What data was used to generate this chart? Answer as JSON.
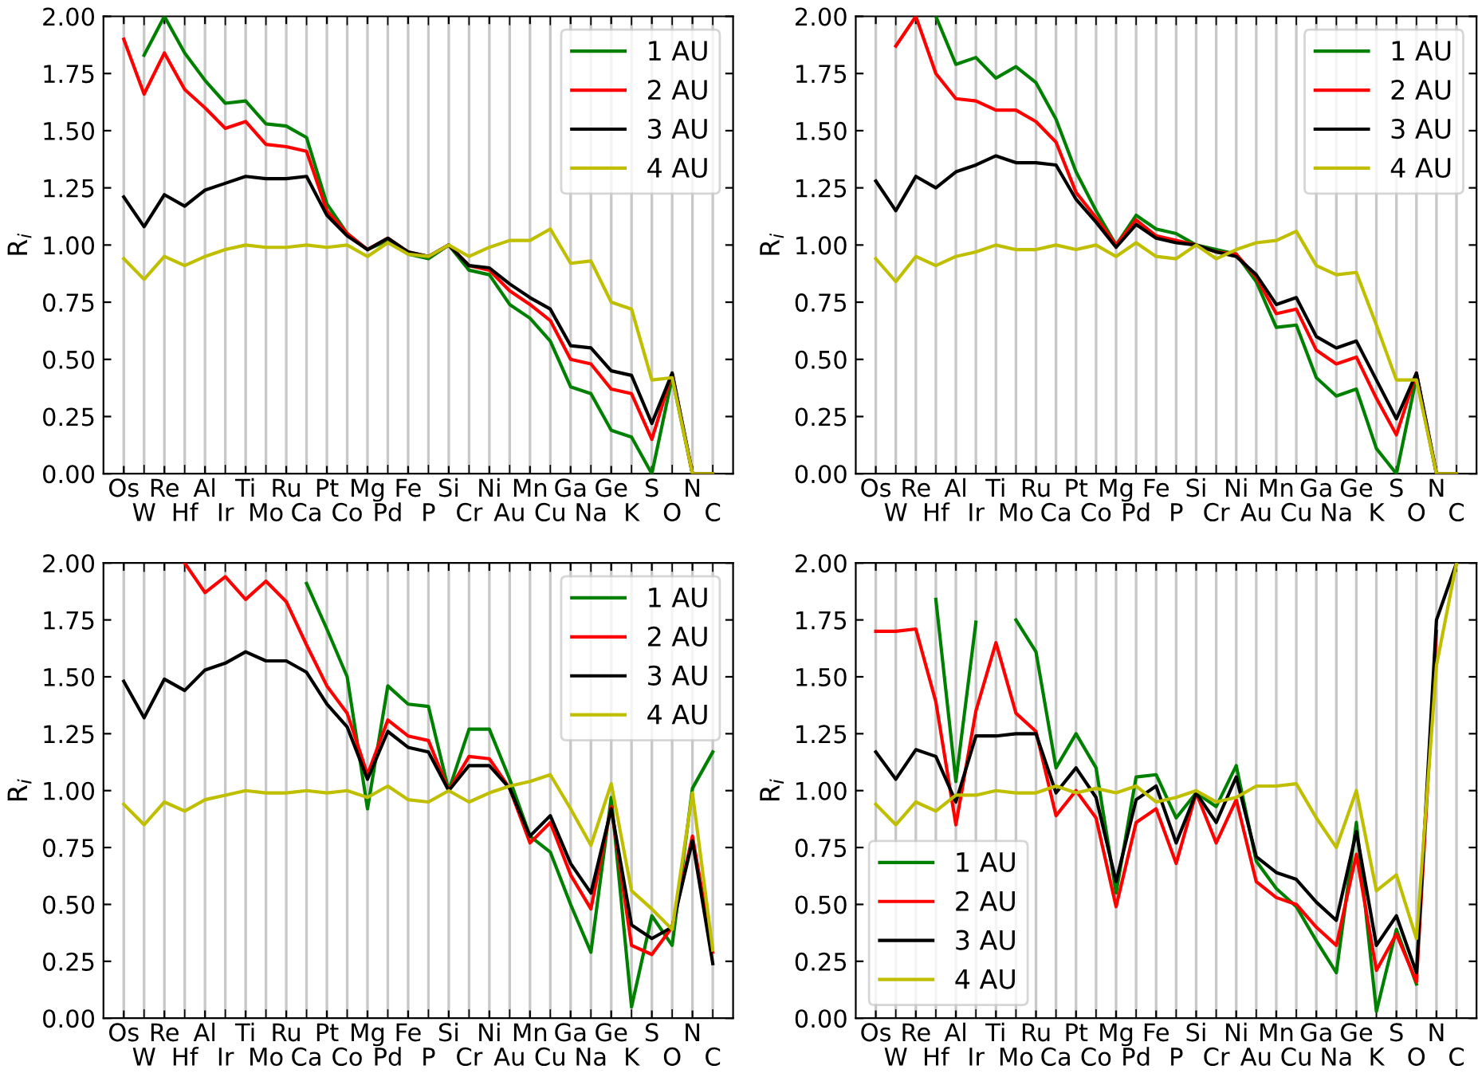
{
  "chart_data": [
    {
      "type": "line",
      "ylabel": "R$_{i}$",
      "grid": "x",
      "legend": "top right",
      "categories": [
        "Os",
        "W",
        "Re",
        "Hf",
        "Al",
        "Ir",
        "Ti",
        "Mo",
        "Ru",
        "Ca",
        "Pt",
        "Co",
        "Mg",
        "Pd",
        "Fe",
        "P",
        "Si",
        "Cr",
        "Ni",
        "Au",
        "Mn",
        "Cu",
        "Ga",
        "Na",
        "Ge",
        "K",
        "S",
        "O",
        "N",
        "C"
      ],
      "ylim": [
        0,
        2
      ],
      "yticks": [
        {
          "value": 0,
          "label": "0.00"
        },
        {
          "value": 0.25,
          "label": "0.25"
        },
        {
          "value": 0.5,
          "label": "0.50"
        },
        {
          "value": 0.75,
          "label": "0.75"
        },
        {
          "value": 1,
          "label": "1.00"
        },
        {
          "value": 1.25,
          "label": "1.25"
        },
        {
          "value": 1.5,
          "label": "1.50"
        },
        {
          "value": 1.75,
          "label": "1.75"
        },
        {
          "value": 2,
          "label": "2.00"
        }
      ],
      "series": [
        {
          "name": "1 AU",
          "color": "#008000",
          "values": [
            null,
            1.83,
            2.0,
            1.84,
            1.72,
            1.62,
            1.63,
            1.53,
            1.52,
            1.47,
            1.18,
            1.05,
            0.98,
            1.02,
            0.96,
            0.94,
            1.0,
            0.89,
            0.87,
            0.74,
            0.68,
            0.58,
            0.38,
            0.35,
            0.19,
            0.16,
            0.0,
            0.42,
            0.0,
            0.0
          ]
        },
        {
          "name": "2 AU",
          "color": "#ff0000",
          "values": [
            1.9,
            1.66,
            1.84,
            1.68,
            1.6,
            1.51,
            1.54,
            1.44,
            1.43,
            1.41,
            1.15,
            1.05,
            0.98,
            1.03,
            0.97,
            0.95,
            1.0,
            0.91,
            0.89,
            0.8,
            0.74,
            0.67,
            0.5,
            0.48,
            0.37,
            0.35,
            0.15,
            0.44,
            0.0,
            0.0
          ]
        },
        {
          "name": "3 AU",
          "color": "#000000",
          "values": [
            1.21,
            1.08,
            1.22,
            1.17,
            1.24,
            1.27,
            1.3,
            1.29,
            1.29,
            1.3,
            1.13,
            1.04,
            0.98,
            1.03,
            0.97,
            0.95,
            1.0,
            0.91,
            0.9,
            0.83,
            0.77,
            0.72,
            0.56,
            0.55,
            0.45,
            0.43,
            0.22,
            0.44,
            0.0,
            0.0
          ]
        },
        {
          "name": "4 AU",
          "color": "#bfbf00",
          "values": [
            0.94,
            0.85,
            0.95,
            0.91,
            0.95,
            0.98,
            1.0,
            0.99,
            0.99,
            1.0,
            0.99,
            1.0,
            0.95,
            1.01,
            0.96,
            0.95,
            1.0,
            0.95,
            0.99,
            1.02,
            1.02,
            1.07,
            0.92,
            0.93,
            0.75,
            0.72,
            0.41,
            0.42,
            0.0,
            0.0
          ]
        }
      ]
    },
    {
      "type": "line",
      "ylabel": "R$_{i}$",
      "grid": "x",
      "legend": "top right",
      "categories": [
        "Os",
        "W",
        "Re",
        "Hf",
        "Al",
        "Ir",
        "Ti",
        "Mo",
        "Ru",
        "Ca",
        "Pt",
        "Co",
        "Mg",
        "Pd",
        "Fe",
        "P",
        "Si",
        "Cr",
        "Ni",
        "Au",
        "Mn",
        "Cu",
        "Ga",
        "Na",
        "Ge",
        "K",
        "S",
        "O",
        "N",
        "C"
      ],
      "ylim": [
        0,
        2
      ],
      "yticks": [
        {
          "value": 0,
          "label": "0.00"
        },
        {
          "value": 0.25,
          "label": "0.25"
        },
        {
          "value": 0.5,
          "label": "0.50"
        },
        {
          "value": 0.75,
          "label": "0.75"
        },
        {
          "value": 1,
          "label": "1.00"
        },
        {
          "value": 1.25,
          "label": "1.25"
        },
        {
          "value": 1.5,
          "label": "1.50"
        },
        {
          "value": 1.75,
          "label": "1.75"
        },
        {
          "value": 2,
          "label": "2.00"
        }
      ],
      "series": [
        {
          "name": "1 AU",
          "color": "#008000",
          "values": [
            null,
            null,
            null,
            2.0,
            1.79,
            1.82,
            1.73,
            1.78,
            1.71,
            1.55,
            1.32,
            1.15,
            1.0,
            1.13,
            1.07,
            1.05,
            1.0,
            0.98,
            0.96,
            0.84,
            0.64,
            0.65,
            0.42,
            0.34,
            0.37,
            0.11,
            0.0,
            0.42,
            0.0,
            0.0
          ]
        },
        {
          "name": "2 AU",
          "color": "#ff0000",
          "values": [
            null,
            1.87,
            2.0,
            1.75,
            1.64,
            1.63,
            1.59,
            1.59,
            1.54,
            1.45,
            1.23,
            1.12,
            1.0,
            1.11,
            1.04,
            1.02,
            1.0,
            0.97,
            0.96,
            0.86,
            0.7,
            0.72,
            0.54,
            0.48,
            0.51,
            0.33,
            0.17,
            0.44,
            0.0,
            0.0
          ]
        },
        {
          "name": "3 AU",
          "color": "#000000",
          "values": [
            1.28,
            1.15,
            1.3,
            1.25,
            1.32,
            1.35,
            1.39,
            1.36,
            1.36,
            1.35,
            1.2,
            1.1,
            0.99,
            1.09,
            1.03,
            1.01,
            1.0,
            0.97,
            0.95,
            0.87,
            0.74,
            0.77,
            0.6,
            0.55,
            0.58,
            0.41,
            0.24,
            0.44,
            0.0,
            0.0
          ]
        },
        {
          "name": "4 AU",
          "color": "#bfbf00",
          "values": [
            0.94,
            0.84,
            0.95,
            0.91,
            0.95,
            0.97,
            1.0,
            0.98,
            0.98,
            1.0,
            0.98,
            1.0,
            0.95,
            1.01,
            0.95,
            0.94,
            1.0,
            0.94,
            0.98,
            1.01,
            1.02,
            1.06,
            0.91,
            0.87,
            0.88,
            0.65,
            0.41,
            0.41,
            0.0,
            0.0
          ]
        }
      ]
    },
    {
      "type": "line",
      "ylabel": "R$_{i}$",
      "grid": "x",
      "legend": "top right",
      "categories": [
        "Os",
        "W",
        "Re",
        "Hf",
        "Al",
        "Ir",
        "Ti",
        "Mo",
        "Ru",
        "Ca",
        "Pt",
        "Co",
        "Mg",
        "Pd",
        "Fe",
        "P",
        "Si",
        "Cr",
        "Ni",
        "Au",
        "Mn",
        "Cu",
        "Ga",
        "Na",
        "Ge",
        "K",
        "S",
        "O",
        "N",
        "C"
      ],
      "ylim": [
        0,
        2
      ],
      "yticks": [
        {
          "value": 0,
          "label": "0.00"
        },
        {
          "value": 0.25,
          "label": "0.25"
        },
        {
          "value": 0.5,
          "label": "0.50"
        },
        {
          "value": 0.75,
          "label": "0.75"
        },
        {
          "value": 1,
          "label": "1.00"
        },
        {
          "value": 1.25,
          "label": "1.25"
        },
        {
          "value": 1.5,
          "label": "1.50"
        },
        {
          "value": 1.75,
          "label": "1.75"
        },
        {
          "value": 2,
          "label": "2.00"
        }
      ],
      "series": [
        {
          "name": "1 AU",
          "color": "#008000",
          "values": [
            null,
            null,
            null,
            null,
            null,
            null,
            null,
            null,
            null,
            1.91,
            1.71,
            1.5,
            0.92,
            1.46,
            1.38,
            1.37,
            1.0,
            1.27,
            1.27,
            1.05,
            0.8,
            0.73,
            0.5,
            0.29,
            0.97,
            0.05,
            0.45,
            0.32,
            1.01,
            1.17
          ]
        },
        {
          "name": "2 AU",
          "color": "#ff0000",
          "values": [
            null,
            null,
            null,
            2.0,
            1.87,
            1.94,
            1.84,
            1.92,
            1.83,
            1.64,
            1.46,
            1.34,
            1.07,
            1.31,
            1.24,
            1.22,
            1.0,
            1.15,
            1.14,
            1.01,
            0.77,
            0.86,
            0.63,
            0.48,
            0.93,
            0.32,
            0.28,
            0.4,
            0.8,
            0.29
          ]
        },
        {
          "name": "3 AU",
          "color": "#000000",
          "values": [
            1.48,
            1.32,
            1.49,
            1.44,
            1.53,
            1.56,
            1.61,
            1.57,
            1.57,
            1.52,
            1.38,
            1.28,
            1.05,
            1.26,
            1.19,
            1.17,
            1.0,
            1.11,
            1.11,
            1.01,
            0.8,
            0.89,
            0.68,
            0.55,
            0.92,
            0.41,
            0.35,
            0.4,
            0.78,
            0.24
          ]
        },
        {
          "name": "4 AU",
          "color": "#bfbf00",
          "values": [
            0.94,
            0.85,
            0.95,
            0.91,
            0.96,
            0.98,
            1.0,
            0.99,
            0.99,
            1.0,
            0.99,
            1.0,
            0.97,
            1.02,
            0.96,
            0.95,
            1.0,
            0.95,
            0.99,
            1.02,
            1.04,
            1.07,
            0.92,
            0.76,
            1.03,
            0.56,
            0.48,
            0.39,
            0.99,
            0.3
          ]
        }
      ]
    },
    {
      "type": "line",
      "ylabel": "R$_{i}$",
      "grid": "x",
      "legend": "bottom left",
      "categories": [
        "Os",
        "W",
        "Re",
        "Hf",
        "Al",
        "Ir",
        "Ti",
        "Mo",
        "Ru",
        "Ca",
        "Pt",
        "Co",
        "Mg",
        "Pd",
        "Fe",
        "P",
        "Si",
        "Cr",
        "Ni",
        "Au",
        "Mn",
        "Cu",
        "Ga",
        "Na",
        "Ge",
        "K",
        "S",
        "O",
        "N",
        "C"
      ],
      "ylim": [
        0,
        2
      ],
      "yticks": [
        {
          "value": 0,
          "label": "0.00"
        },
        {
          "value": 0.25,
          "label": "0.25"
        },
        {
          "value": 0.5,
          "label": "0.50"
        },
        {
          "value": 0.75,
          "label": "0.75"
        },
        {
          "value": 1,
          "label": "1.00"
        },
        {
          "value": 1.25,
          "label": "1.25"
        },
        {
          "value": 1.5,
          "label": "1.50"
        },
        {
          "value": 1.75,
          "label": "1.75"
        },
        {
          "value": 2,
          "label": "2.00"
        }
      ],
      "series": [
        {
          "name": "1 AU",
          "color": "#008000",
          "values": [
            null,
            null,
            null,
            1.84,
            1.04,
            1.74,
            null,
            1.75,
            1.61,
            1.1,
            1.25,
            1.1,
            0.55,
            1.06,
            1.07,
            0.88,
            0.99,
            0.93,
            1.11,
            0.69,
            0.57,
            0.49,
            0.34,
            0.2,
            0.86,
            0.03,
            0.39,
            0.15,
            null,
            null
          ]
        },
        {
          "name": "2 AU",
          "color": "#ff0000",
          "values": [
            1.7,
            1.7,
            1.71,
            1.39,
            0.85,
            1.35,
            1.65,
            1.34,
            1.26,
            0.89,
            1.0,
            0.88,
            0.49,
            0.86,
            0.92,
            0.68,
            0.99,
            0.77,
            0.96,
            0.6,
            0.53,
            0.5,
            0.4,
            0.32,
            0.72,
            0.21,
            0.37,
            0.16,
            1.7,
            null
          ]
        },
        {
          "name": "3 AU",
          "color": "#000000",
          "values": [
            1.17,
            1.05,
            1.18,
            1.15,
            0.95,
            1.24,
            1.24,
            1.25,
            1.25,
            0.99,
            1.1,
            0.97,
            0.6,
            0.96,
            1.02,
            0.77,
            0.99,
            0.86,
            1.06,
            0.71,
            0.64,
            0.61,
            0.51,
            0.43,
            0.82,
            0.32,
            0.45,
            0.2,
            1.75,
            2.0
          ]
        },
        {
          "name": "4 AU",
          "color": "#bfbf00",
          "values": [
            0.94,
            0.85,
            0.95,
            0.91,
            0.98,
            0.98,
            1.0,
            0.99,
            0.99,
            1.02,
            0.99,
            1.01,
            0.99,
            1.02,
            0.95,
            0.97,
            1.0,
            0.95,
            0.97,
            1.02,
            1.02,
            1.03,
            0.88,
            0.75,
            1.0,
            0.56,
            0.63,
            0.35,
            1.55,
            2.0
          ]
        }
      ]
    }
  ]
}
